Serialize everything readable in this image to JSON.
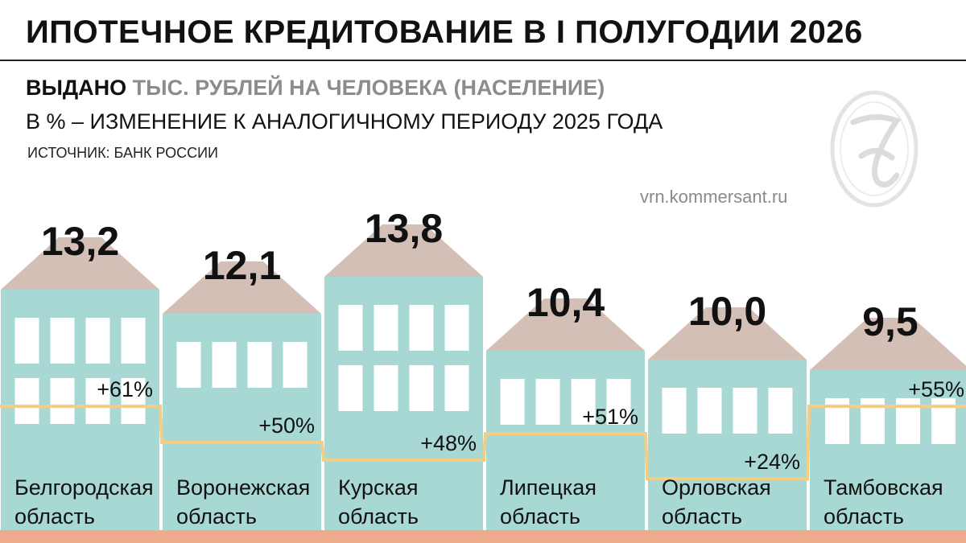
{
  "header": {
    "title": "ИПОТЕЧНОЕ КРЕДИТОВАНИЕ В I ПОЛУГОДИИ 2026",
    "subtitle_strong": "ВЫДАНО",
    "subtitle_grey": " ТЫС. РУБЛЕЙ НА ЧЕЛОВЕКА (НАСЕЛЕНИЕ)",
    "subtitle2": "В % – ИЗМЕНЕНИЕ К АНАЛОГИЧНОМУ ПЕРИОДУ 2025 ГОДА",
    "source": "ИСТОЧНИК: БАНК РОССИИ",
    "site": "vrn.kommersant.ru"
  },
  "colors": {
    "building": "#a8d8d4",
    "roof": "#d4bfb6",
    "window": "#ffffff",
    "change_line": "#f2cd85",
    "ground": "#efaa8c",
    "text": "#111111"
  },
  "chart_data": {
    "type": "bar",
    "categories": [
      [
        "Белгородская",
        "область"
      ],
      [
        "Воронежская",
        "область"
      ],
      [
        "Курская",
        "область"
      ],
      [
        "Липецкая",
        "область"
      ],
      [
        "Орловская",
        "область"
      ],
      [
        "Тамбовская",
        "область"
      ]
    ],
    "series": [
      {
        "values": [
          13.2,
          12.1,
          13.8,
          10.4,
          10.0,
          9.5
        ],
        "labels": [
          "13,2",
          "12,1",
          "13,8",
          "10,4",
          "10,0",
          "9,5"
        ]
      },
      {
        "values": [
          61,
          50,
          48,
          51,
          24,
          55
        ],
        "labels": [
          "+61%",
          "+50%",
          "+48%",
          "+51%",
          "+24%",
          "+55%"
        ]
      }
    ],
    "ylim": [
      0,
      14
    ]
  }
}
